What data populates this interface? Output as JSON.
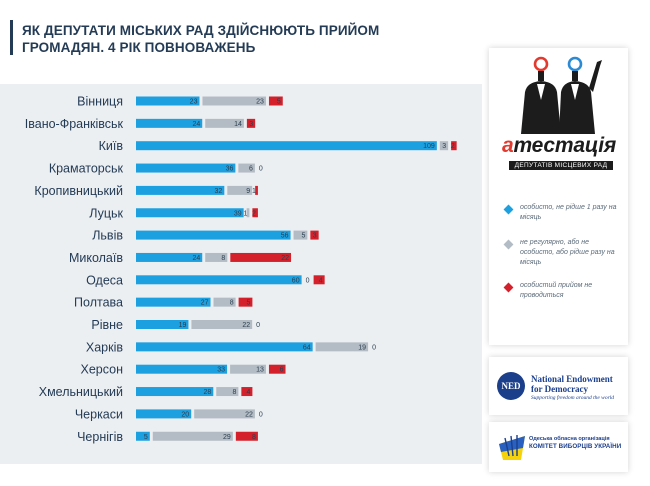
{
  "title": {
    "line1": "ЯК ДЕПУТАТИ МІСЬКИХ РАД ЗДІЙСНЮЮТЬ ПРИЙОМ",
    "line2": "ГРОМАДЯН. 4 РІК ПОВНОВАЖЕНЬ"
  },
  "colors": {
    "blue": "#1ca0e0",
    "gray": "#b3bcc4",
    "red": "#d3202a",
    "title": "#243b55",
    "panel": "#eceff2"
  },
  "logo": {
    "word_prefix": "а",
    "word_rest": "тестація",
    "subtitle": "ДЕПУТАТІВ МІСЦЕВИХ РАД"
  },
  "legend": [
    {
      "color": "#1ca0e0",
      "icon": "diamond-icon",
      "text": "особисто, не рідше 1 разу на місяць"
    },
    {
      "color": "#b3bcc4",
      "icon": "diamond-icon",
      "text": "не регулярно, або не особисто, або рідше разу на місяць"
    },
    {
      "color": "#d3202a",
      "icon": "diamond-icon",
      "text": "особистий прийом не проводиться"
    }
  ],
  "sponsors": {
    "ned_initials": "NED",
    "ned_name": "National Endowment for Democracy",
    "ned_tagline": "Supporting freedom around the world",
    "cvu_line1": "Одеська обласна організація",
    "cvu_line2": "КОМІТЕТ ВИБОРЦІВ УКРАЇНИ"
  },
  "chart_data": {
    "type": "bar",
    "stacked": true,
    "orientation": "horizontal",
    "categories": [
      "Вінниця",
      "Івано-Франківськ",
      "Київ",
      "Краматорськ",
      "Кропивницький",
      "Луцьк",
      "Львів",
      "Миколаїв",
      "Одеса",
      "Полтава",
      "Рівне",
      "Харків",
      "Херсон",
      "Хмельницький",
      "Черкаси",
      "Чернігів"
    ],
    "series": [
      {
        "color": "#1ca0e0",
        "values": [
          23,
          24,
          109,
          36,
          32,
          39,
          56,
          24,
          60,
          27,
          19,
          64,
          33,
          28,
          20,
          5
        ]
      },
      {
        "color": "#b3bcc4",
        "values": [
          23,
          14,
          3,
          6,
          9,
          1,
          5,
          8,
          0,
          8,
          22,
          19,
          13,
          8,
          22,
          29
        ]
      },
      {
        "color": "#d3202a",
        "values": [
          5,
          3,
          2,
          0,
          1,
          2,
          3,
          22,
          4,
          5,
          0,
          0,
          6,
          4,
          0,
          8
        ]
      }
    ]
  }
}
